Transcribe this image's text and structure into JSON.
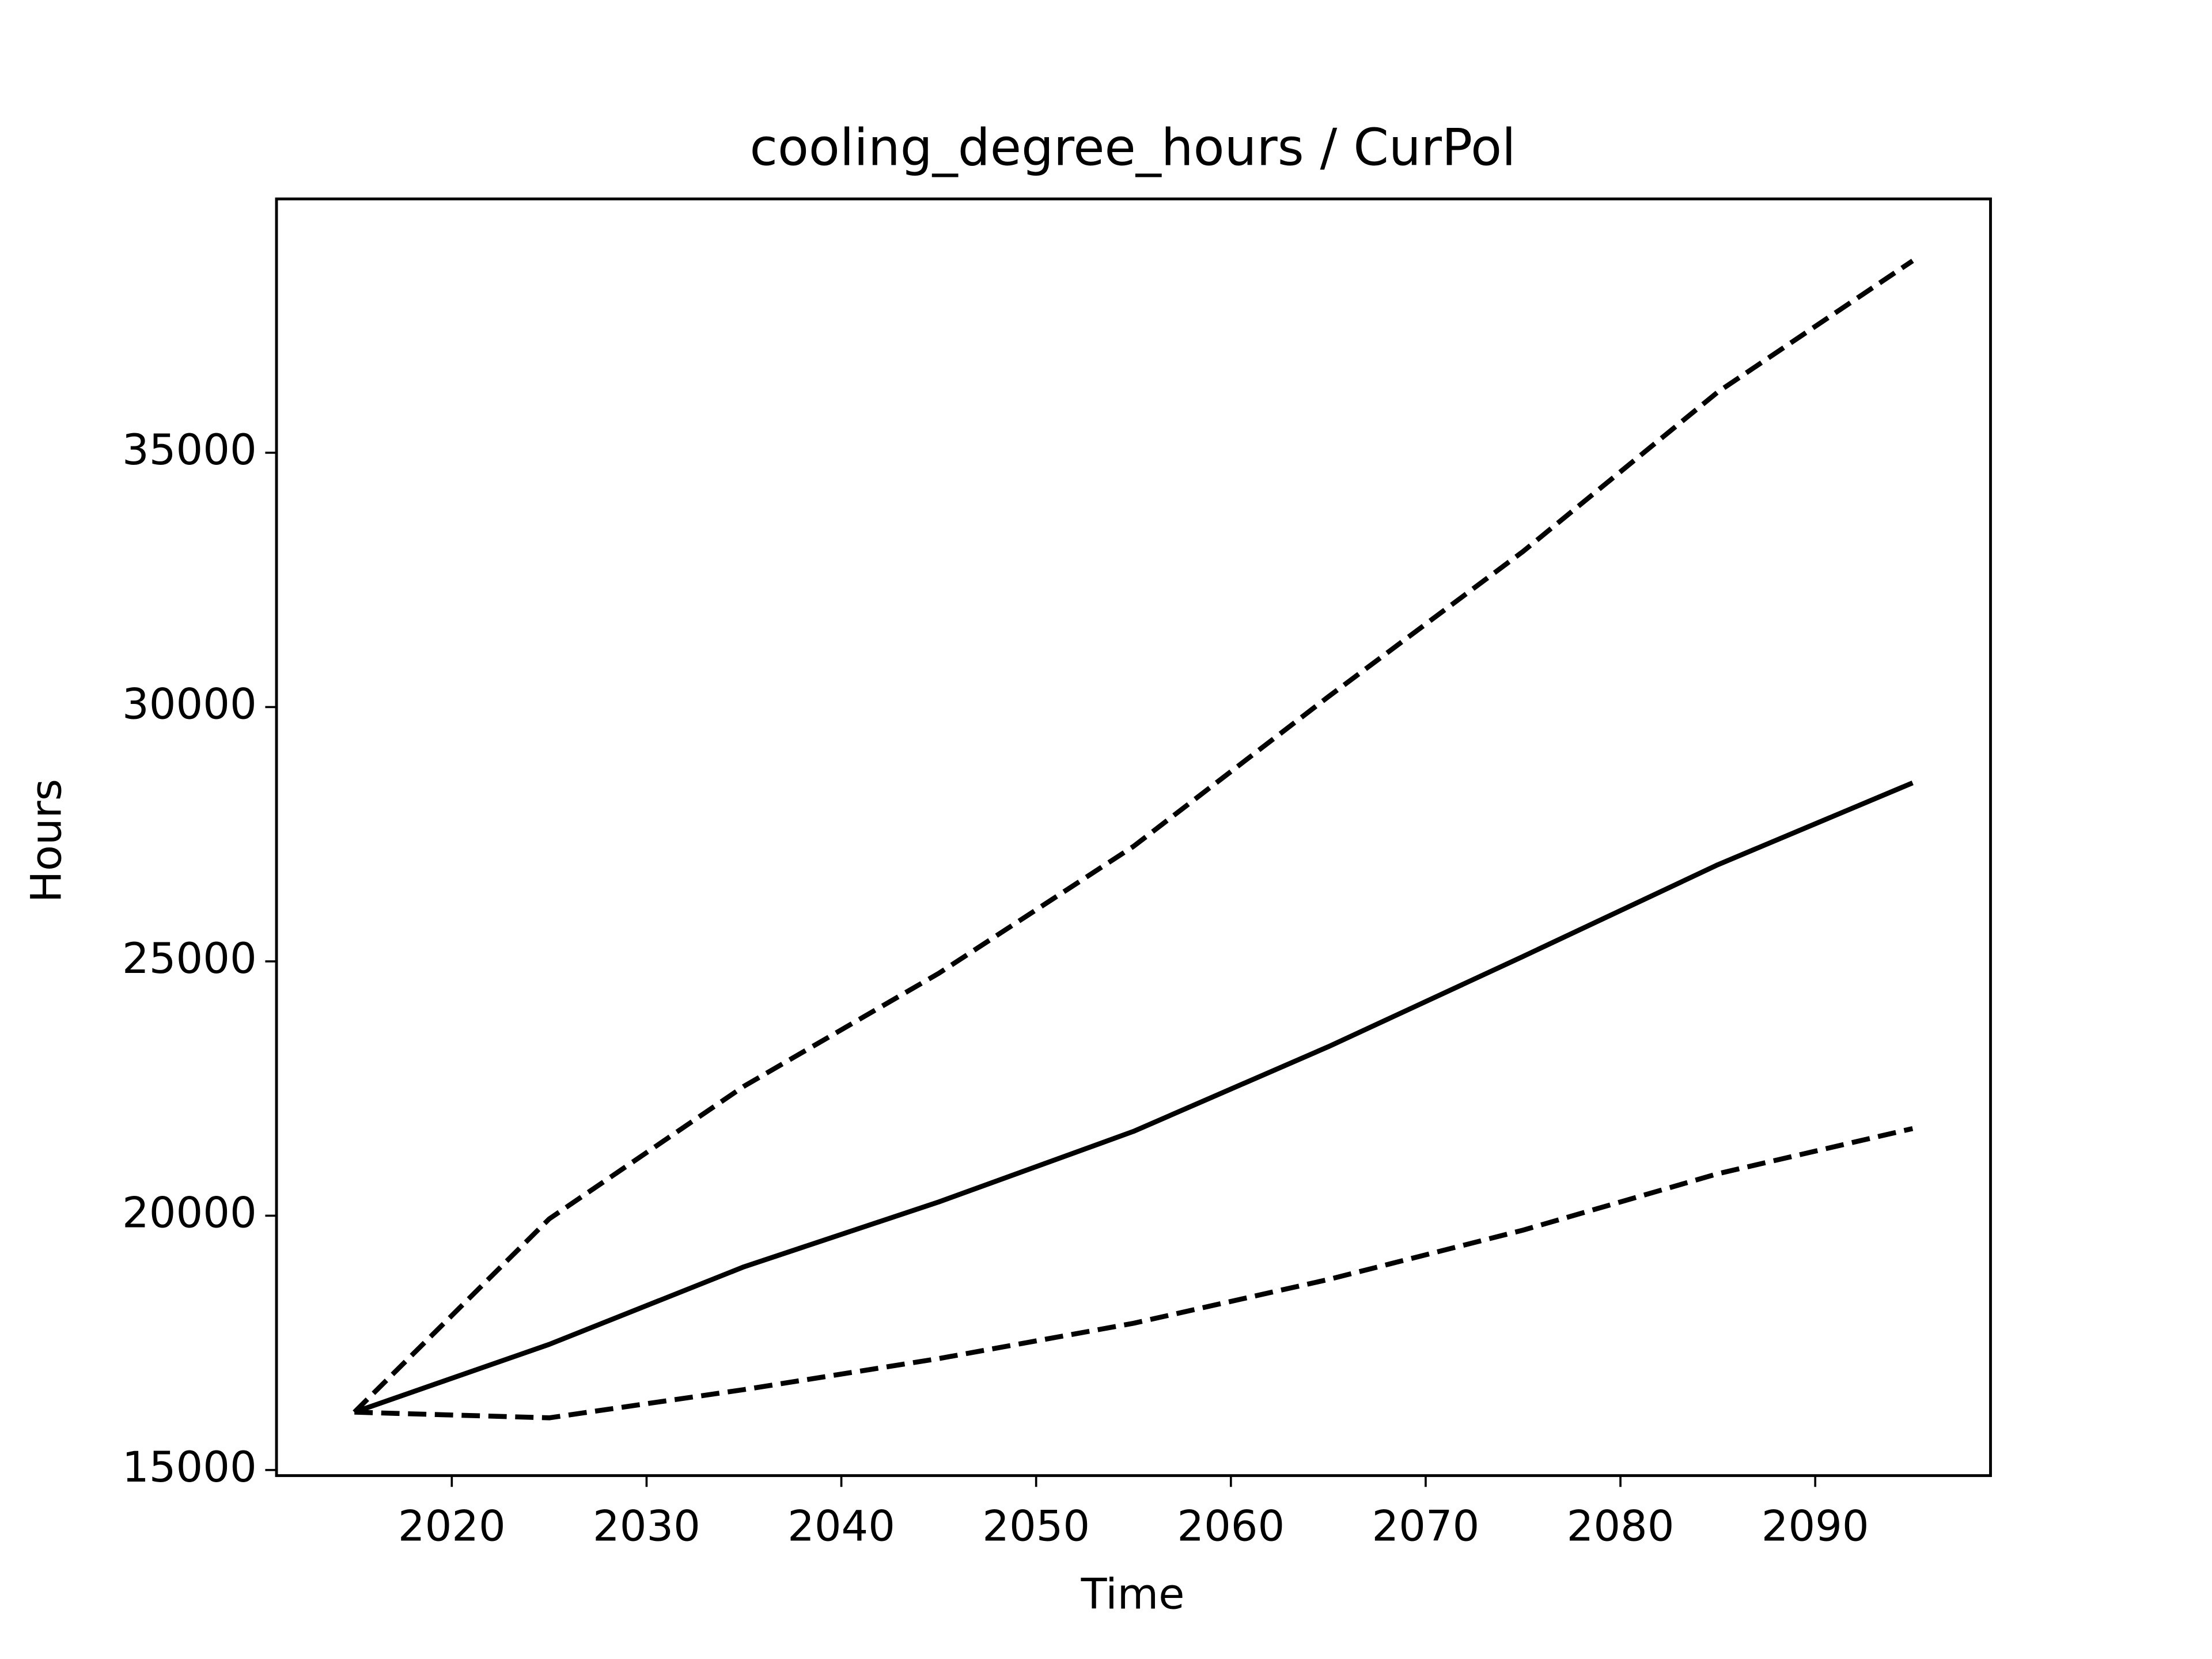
{
  "chart_data": {
    "type": "line",
    "title": "cooling_degree_hours / CurPol",
    "x_label": "Time",
    "y_label": "Hours",
    "x": [
      2015,
      2025,
      2035,
      2045,
      2055,
      2065,
      2075,
      2085,
      2095
    ],
    "series": [
      {
        "color": "#000000",
        "linestyle": "solid",
        "values": [
          16137,
          17470,
          18995,
          20270,
          21658,
          23322,
          25097,
          26900,
          28509
        ]
      },
      {
        "color": "#000000",
        "linestyle": "dashed",
        "values": [
          16137,
          19937,
          22545,
          24765,
          27261,
          30202,
          33059,
          36193,
          38773
        ]
      },
      {
        "color": "#000000",
        "linestyle": "dashed",
        "values": [
          16137,
          16026,
          16581,
          17191,
          17885,
          18745,
          19716,
          20825,
          21713
        ]
      }
    ],
    "xlim": [
      2011,
      2099
    ],
    "ylim": [
      14890,
      39990
    ],
    "xticks": [
      2020,
      2030,
      2040,
      2050,
      2060,
      2070,
      2080,
      2090
    ],
    "yticks": [
      15000,
      20000,
      25000,
      30000,
      35000
    ],
    "grid": false
  }
}
